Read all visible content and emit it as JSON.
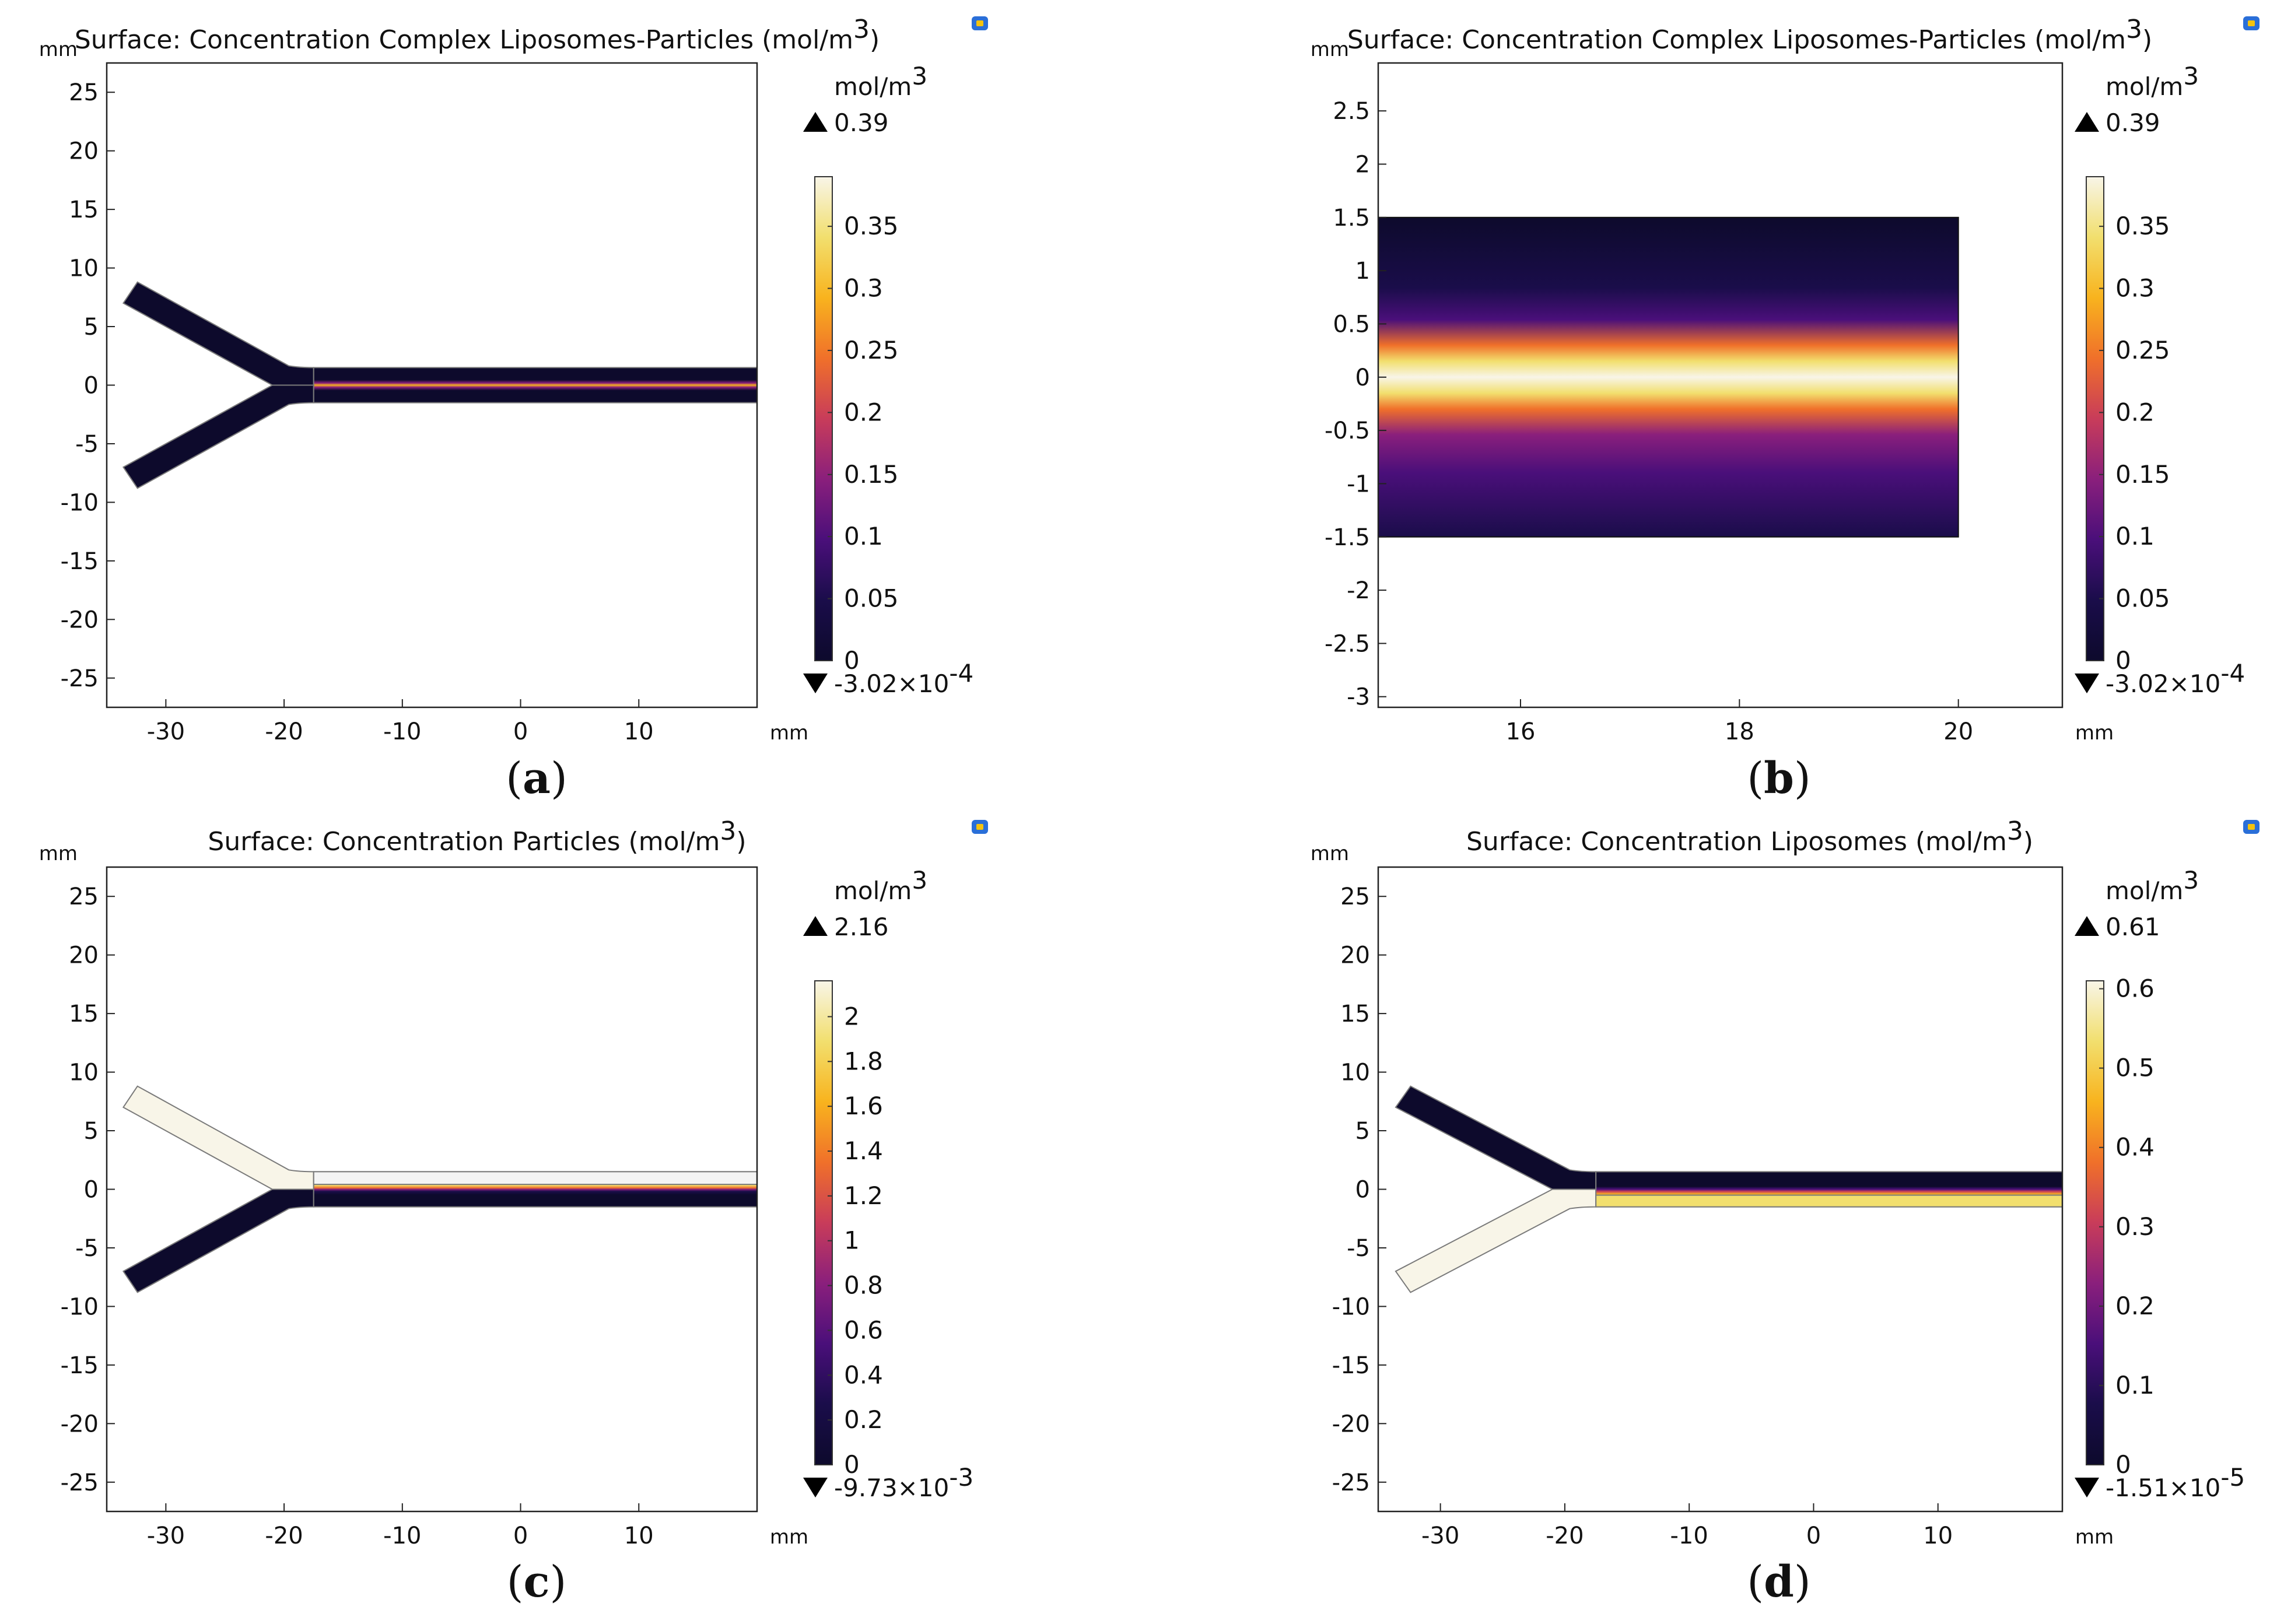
{
  "colors": {
    "colormap": [
      "#0d0a2c",
      "#1a0d4a",
      "#4a0f7a",
      "#8a1f7c",
      "#c83c5a",
      "#f0702a",
      "#f8b31e",
      "#f2df6e",
      "#f8f5e8"
    ],
    "boundary": "#7a7a7a",
    "axis": "#222222",
    "empty_fill": "#f4f4f4",
    "icon_blue": "#2a6fd8",
    "icon_yellow": "#f4c30e"
  },
  "chart_data": [
    {
      "id": "a",
      "type": "heatmap",
      "caption": "a",
      "title": "Surface: Concentration Complex Liposomes-Particles (mol/m3)",
      "title_main": "Surface: Concentration Complex Liposomes-Particles (mol/m",
      "title_sup": "3",
      "title_end": ")",
      "x_unit": "mm",
      "y_unit": "mm",
      "xlim": [
        -35,
        20
      ],
      "ylim": [
        -27.5,
        27.5
      ],
      "xticks": [
        -30,
        -20,
        -10,
        0,
        10
      ],
      "yticks": [
        25,
        20,
        15,
        10,
        5,
        0,
        -5,
        -10,
        -15,
        -20,
        -25
      ],
      "geometry": "y-channel",
      "field": {
        "inlet_upper": 0,
        "inlet_lower": 0,
        "outlet_profile": "center_peak"
      },
      "colorbar": {
        "unit_main": "mol/m",
        "unit_sup": "3",
        "max_label": "0.39",
        "min_main": "-3.02×10",
        "min_sup": "-4",
        "range": [
          0,
          0.39
        ],
        "ticks": [
          "0.35",
          "0.3",
          "0.25",
          "0.2",
          "0.15",
          "0.1",
          "0.05",
          "0"
        ],
        "tick_values": [
          0.35,
          0.3,
          0.25,
          0.2,
          0.15,
          0.1,
          0.05,
          0
        ]
      }
    },
    {
      "id": "b",
      "type": "heatmap",
      "caption": "b",
      "title": "Surface: Concentration Complex Liposomes-Particles (mol/m3)",
      "title_main": "Surface: Concentration Complex Liposomes-Particles (mol/m",
      "title_sup": "3",
      "title_end": ")",
      "x_unit": "mm",
      "y_unit": "mm",
      "xlim": [
        14.7,
        20.95
      ],
      "ylim": [
        -3.1,
        2.95
      ],
      "xticks": [
        16,
        18,
        20
      ],
      "yticks": [
        2.5,
        2,
        1.5,
        1,
        0.5,
        0,
        -0.5,
        -1,
        -1.5,
        -2,
        -2.5,
        -3
      ],
      "geometry": "rect",
      "rect": {
        "x": [
          14.7,
          20
        ],
        "y": [
          -1.5,
          1.5
        ]
      },
      "field": {
        "profile": "center_peak"
      },
      "colorbar": {
        "unit_main": "mol/m",
        "unit_sup": "3",
        "max_label": "0.39",
        "min_main": "-3.02×10",
        "min_sup": "-4",
        "range": [
          0,
          0.39
        ],
        "ticks": [
          "0.35",
          "0.3",
          "0.25",
          "0.2",
          "0.15",
          "0.1",
          "0.05",
          "0"
        ],
        "tick_values": [
          0.35,
          0.3,
          0.25,
          0.2,
          0.15,
          0.1,
          0.05,
          0
        ]
      }
    },
    {
      "id": "c",
      "type": "heatmap",
      "caption": "c",
      "title": "Surface: Concentration Particles (mol/m3)",
      "title_main": "Surface: Concentration Particles (mol/m",
      "title_sup": "3",
      "title_end": ")",
      "x_unit": "mm",
      "y_unit": "mm",
      "xlim": [
        -35,
        20
      ],
      "ylim": [
        -27.5,
        27.5
      ],
      "xticks": [
        -30,
        -20,
        -10,
        0,
        10
      ],
      "yticks": [
        25,
        20,
        15,
        10,
        5,
        0,
        -5,
        -10,
        -15,
        -20,
        -25
      ],
      "geometry": "y-channel",
      "field": {
        "inlet_upper": 2.16,
        "inlet_lower": 0,
        "outlet_profile": "upper_high"
      },
      "colorbar": {
        "unit_main": "mol/m",
        "unit_sup": "3",
        "max_label": "2.16",
        "min_main": "-9.73×10",
        "min_sup": "-3",
        "range": [
          0,
          2.16
        ],
        "ticks": [
          "2",
          "1.8",
          "1.6",
          "1.4",
          "1.2",
          "1",
          "0.8",
          "0.6",
          "0.4",
          "0.2",
          "0"
        ],
        "tick_values": [
          2,
          1.8,
          1.6,
          1.4,
          1.2,
          1,
          0.8,
          0.6,
          0.4,
          0.2,
          0
        ]
      }
    },
    {
      "id": "d",
      "type": "heatmap",
      "caption": "d",
      "title": "Surface: Concentration Liposomes (mol/m3)",
      "title_main": "Surface: Concentration Liposomes (mol/m",
      "title_sup": "3",
      "title_end": ")",
      "x_unit": "mm",
      "y_unit": "mm",
      "xlim": [
        -35,
        20
      ],
      "ylim": [
        -27.5,
        27.5
      ],
      "xticks": [
        -30,
        -20,
        -10,
        0,
        10
      ],
      "yticks": [
        25,
        20,
        15,
        10,
        5,
        0,
        -5,
        -10,
        -15,
        -20,
        -25
      ],
      "geometry": "y-channel",
      "field": {
        "inlet_upper": 0,
        "inlet_lower": 0.61,
        "outlet_profile": "lower_high"
      },
      "colorbar": {
        "unit_main": "mol/m",
        "unit_sup": "3",
        "max_label": "0.61",
        "min_main": "-1.51×10",
        "min_sup": "-5",
        "range": [
          0,
          0.61
        ],
        "ticks": [
          "0.6",
          "0.5",
          "0.4",
          "0.3",
          "0.2",
          "0.1",
          "0"
        ],
        "tick_values": [
          0.6,
          0.5,
          0.4,
          0.3,
          0.2,
          0.1,
          0
        ]
      }
    }
  ]
}
